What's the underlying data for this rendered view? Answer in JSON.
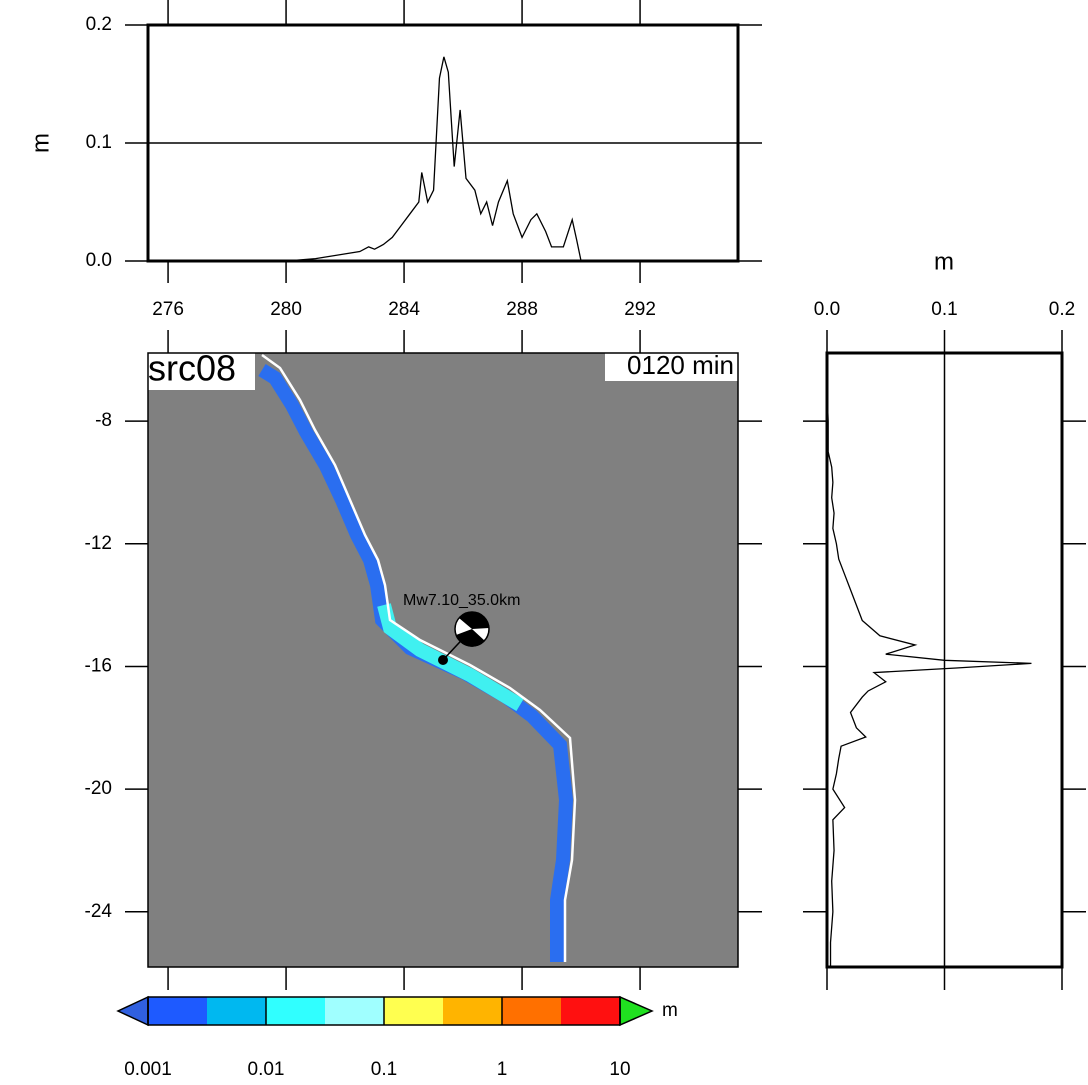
{
  "chart_data": [
    {
      "type": "line",
      "ylabel": "m",
      "x": [
        278.8,
        280,
        281,
        281.5,
        282,
        282.5,
        282.8,
        283,
        283.3,
        283.6,
        283.9,
        284.2,
        284.5,
        284.6,
        284.8,
        285,
        285.2,
        285.35,
        285.5,
        285.7,
        285.9,
        286.1,
        286.4,
        286.6,
        286.8,
        287,
        287.2,
        287.5,
        287.7,
        288,
        288.3,
        288.5,
        288.8,
        289,
        289.4,
        289.7,
        289.85,
        290
      ],
      "values": [
        0,
        0,
        0.002,
        0.004,
        0.006,
        0.008,
        0.012,
        0.01,
        0.014,
        0.02,
        0.03,
        0.04,
        0.05,
        0.075,
        0.05,
        0.06,
        0.155,
        0.173,
        0.16,
        0.08,
        0.128,
        0.07,
        0.06,
        0.04,
        0.05,
        0.03,
        0.05,
        0.068,
        0.04,
        0.02,
        0.035,
        0.04,
        0.025,
        0.012,
        0.012,
        0.035,
        0.018,
        0
      ],
      "color": "#000000",
      "xlim": [
        275.32,
        295.32
      ],
      "xticks": [
        276,
        280,
        284,
        288,
        292
      ],
      "ylim": [
        0,
        0.2
      ],
      "yticks": [
        {
          "value": 0,
          "label": "0.0"
        },
        0.1,
        0.2
      ],
      "grid": true
    },
    {
      "type": "map",
      "title": "src08",
      "subtitle": "0120 min",
      "annotation": "Mw7.10_35.0km",
      "epicenter": [
        285.32,
        -15.79
      ],
      "background": "#808080",
      "xlim": [
        275.32,
        295.32
      ],
      "xticks": [
        276,
        280,
        284,
        288,
        292
      ],
      "ylim": [
        -25.8,
        -5.78
      ],
      "yticks": [
        -8,
        -12,
        -16,
        -20,
        -24
      ]
    },
    {
      "type": "hline",
      "xlabel": "m",
      "y": [
        -6,
        -7,
        -8,
        -9,
        -9.5,
        -10,
        -10.5,
        -11,
        -11.5,
        -12,
        -12.5,
        -13,
        -13.5,
        -14,
        -14.5,
        -15,
        -15.3,
        -15.6,
        -15.8,
        -15.9,
        -16.05,
        -16.2,
        -16.5,
        -16.8,
        -17,
        -17.5,
        -18,
        -18.3,
        -18.6,
        -19,
        -19.5,
        -20,
        -20.6,
        -21,
        -22,
        -23,
        -24,
        -25,
        -25.8
      ],
      "values": [
        0,
        0,
        0.001,
        0.001,
        0.004,
        0.005,
        0.004,
        0.006,
        0.005,
        0.008,
        0.01,
        0.015,
        0.02,
        0.025,
        0.03,
        0.045,
        0.075,
        0.05,
        0.1,
        0.174,
        0.11,
        0.04,
        0.05,
        0.035,
        0.03,
        0.02,
        0.025,
        0.033,
        0.012,
        0.01,
        0.008,
        0.005,
        0.015,
        0.005,
        0.006,
        0.004,
        0.005,
        0.003,
        0.003
      ],
      "color": "#000000",
      "xlim": [
        0,
        0.2
      ],
      "xticks": [
        {
          "value": 0,
          "label": "0.0"
        },
        0.1,
        0.2
      ],
      "grid": true,
      "ylim": [
        -25.8,
        -5.78
      ],
      "yticks": [
        -8,
        -12,
        -16,
        -20,
        -24
      ]
    },
    {
      "type": "colorbar",
      "label": "m",
      "scale": "log",
      "ticks": [
        0.001,
        0.01,
        0.1,
        1,
        10
      ],
      "lim": [
        0.001,
        10
      ],
      "colors": [
        "#1e5aff",
        "#00b8f0",
        "#30ffff",
        "#a0ffff",
        "#ffff50",
        "#ffb400",
        "#ff7000",
        "#ff1010"
      ],
      "under_color": "#3060e0",
      "over_color": "#20e020"
    }
  ]
}
